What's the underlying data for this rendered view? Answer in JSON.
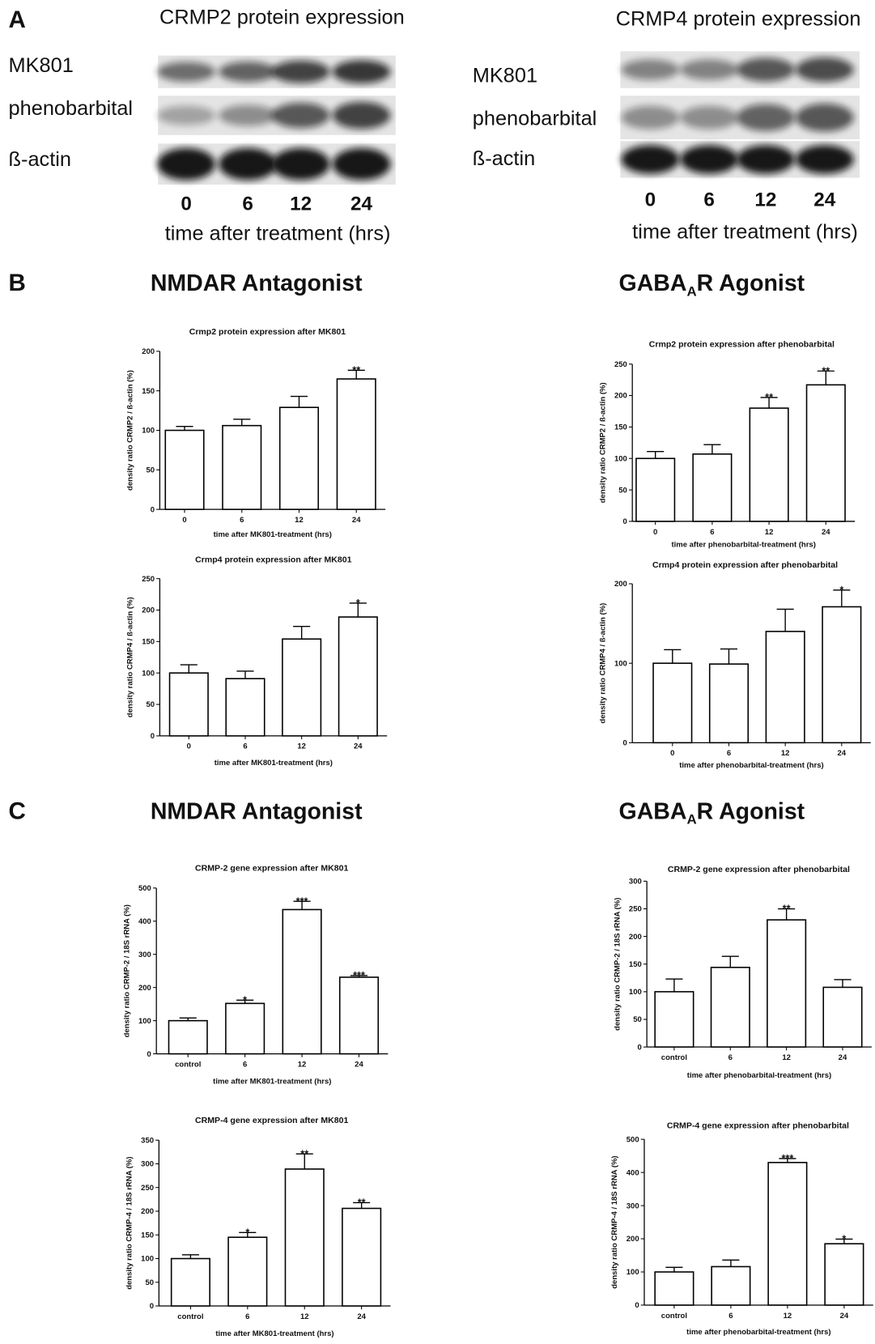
{
  "section_labels": [
    "A",
    "B",
    "C"
  ],
  "panel_a": [
    {
      "title": "CRMP2 protein expression",
      "rows": [
        "MK801",
        "phenobarbital",
        "ß-actin"
      ],
      "lanes": [
        "0",
        "6",
        "12",
        "24"
      ],
      "x_label": "time after treatment (hrs)"
    },
    {
      "title": "CRMP4 protein expression",
      "rows": [
        "MK801",
        "phenobarbital",
        "ß-actin"
      ],
      "lanes": [
        "0",
        "6",
        "12",
        "24"
      ],
      "x_label": "time after treatment (hrs)"
    }
  ],
  "headings": {
    "nmdar": "NMDAR Antagonist",
    "gaba": {
      "main": "GABA",
      "sub": "A",
      "rest": "R Agonist"
    }
  },
  "chart_data": [
    {
      "type": "bar",
      "title": "Crmp2 protein expression after MK801",
      "x_label": "time after MK801-treatment (hrs)",
      "y_label": "density ratio CRMP2 / ß-actin (%)",
      "categories": [
        "0",
        "6",
        "12",
        "24"
      ],
      "values": [
        100,
        106,
        129,
        165
      ],
      "errors": [
        5,
        8,
        14,
        11
      ],
      "significance": [
        null,
        null,
        null,
        "**"
      ],
      "ylim": [
        0,
        200
      ],
      "yticks": [
        0,
        50,
        100,
        150,
        200
      ],
      "color": "#ffffff"
    },
    {
      "type": "bar",
      "title": "Crmp2 protein expression after phenobarbital",
      "x_label": "time after phenobarbital-treatment (hrs)",
      "y_label": "density ratio CRMP2 / ß-actin (%)",
      "categories": [
        "0",
        "6",
        "12",
        "24"
      ],
      "values": [
        100,
        107,
        180,
        217
      ],
      "errors": [
        11,
        15,
        17,
        22
      ],
      "significance": [
        null,
        null,
        "**",
        "**"
      ],
      "ylim": [
        0,
        250
      ],
      "yticks": [
        0,
        50,
        100,
        150,
        200,
        250
      ],
      "color": "#ffffff"
    },
    {
      "type": "bar",
      "title": "Crmp4 protein expression after MK801",
      "x_label": "time after MK801-treatment (hrs)",
      "y_label": "density ratio CRMP4 / ß-actin (%)",
      "categories": [
        "0",
        "6",
        "12",
        "24"
      ],
      "values": [
        100,
        91,
        154,
        189
      ],
      "errors": [
        13,
        12,
        20,
        22
      ],
      "significance": [
        null,
        null,
        null,
        "*"
      ],
      "ylim": [
        0,
        250
      ],
      "yticks": [
        0,
        50,
        100,
        150,
        200,
        250
      ],
      "color": "#ffffff"
    },
    {
      "type": "bar",
      "title": "Crmp4 protein expression after phenobarbital",
      "x_label": "time after phenobarbital-treatment (hrs)",
      "y_label": "density ratio CRMP4 / ß-actin (%)",
      "categories": [
        "0",
        "6",
        "12",
        "24"
      ],
      "values": [
        100,
        99,
        140,
        171
      ],
      "errors": [
        17,
        19,
        28,
        21
      ],
      "significance": [
        null,
        null,
        null,
        "*"
      ],
      "ylim": [
        0,
        200
      ],
      "yticks": [
        0,
        100,
        200
      ],
      "color": "#ffffff"
    },
    {
      "type": "bar",
      "title": "CRMP-2 gene expression after MK801",
      "x_label": "time after MK801-treatment (hrs)",
      "y_label": "density ratio CRMP-2 / 18S rRNA (%)",
      "categories": [
        "control",
        "6",
        "12",
        "24"
      ],
      "values": [
        100,
        152,
        435,
        231
      ],
      "errors": [
        8,
        10,
        25,
        5
      ],
      "significance": [
        null,
        "*",
        "***",
        "***"
      ],
      "ylim": [
        0,
        500
      ],
      "yticks": [
        0,
        100,
        200,
        300,
        400,
        500
      ],
      "color": "#ffffff"
    },
    {
      "type": "bar",
      "title": "CRMP-2 gene expression after phenobarbital",
      "x_label": "time after phenobarbital-treatment (hrs)",
      "y_label": "density ratio CRMP-2 / 18S rRNA (%)",
      "categories": [
        "control",
        "6",
        "12",
        "24"
      ],
      "values": [
        100,
        144,
        230,
        108
      ],
      "errors": [
        23,
        20,
        20,
        14
      ],
      "significance": [
        null,
        null,
        "**",
        null
      ],
      "ylim": [
        0,
        300
      ],
      "yticks": [
        0,
        50,
        100,
        150,
        200,
        250,
        300
      ],
      "color": "#ffffff"
    },
    {
      "type": "bar",
      "title": "CRMP-4 gene expression after MK801",
      "x_label": "time after MK801-treatment (hrs)",
      "y_label": "density ratio CRMP-4 / 18S rRNA (%)",
      "categories": [
        "control",
        "6",
        "12",
        "24"
      ],
      "values": [
        100,
        145,
        289,
        206
      ],
      "errors": [
        8,
        10,
        32,
        12
      ],
      "significance": [
        null,
        "*",
        "**",
        "**"
      ],
      "ylim": [
        0,
        350
      ],
      "yticks": [
        0,
        50,
        100,
        150,
        200,
        250,
        300,
        350
      ],
      "color": "#ffffff"
    },
    {
      "type": "bar",
      "title": "CRMP-4 gene expression after phenobarbital",
      "x_label": "time after phenobarbital-treatment (hrs)",
      "y_label": "density ratio CRMP-4 / 18S rRNA (%)",
      "categories": [
        "control",
        "6",
        "12",
        "24"
      ],
      "values": [
        100,
        116,
        430,
        185
      ],
      "errors": [
        14,
        20,
        12,
        14
      ],
      "significance": [
        null,
        null,
        "***",
        "*"
      ],
      "ylim": [
        0,
        500
      ],
      "yticks": [
        0,
        100,
        200,
        300,
        400,
        500
      ],
      "color": "#ffffff"
    }
  ]
}
